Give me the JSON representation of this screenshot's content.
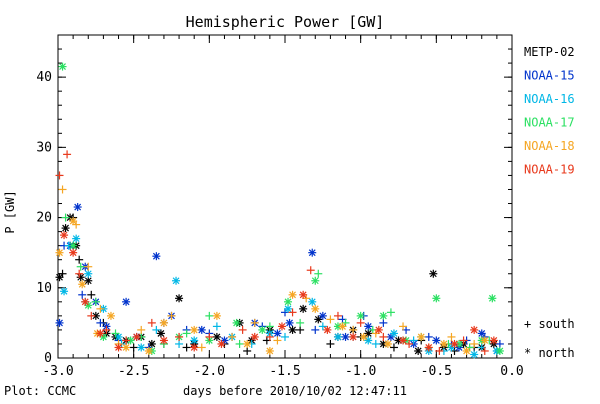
{
  "chart_data": {
    "type": "scatter",
    "title": "Hemispheric Power [GW]",
    "xlabel": "days before 2010/10/02 12:47:11",
    "ylabel": "P [GW]",
    "xlim": [
      -3.0,
      0.0
    ],
    "ylim": [
      0,
      46
    ],
    "x_ticks": [
      -3.0,
      -2.5,
      -2.0,
      -1.5,
      -1.0,
      -0.5,
      0.0
    ],
    "x_tick_labels": [
      "-3.0",
      "-2.5",
      "-2.0",
      "-1.5",
      "-1.0",
      "-0.5",
      "0.0"
    ],
    "y_ticks": [
      0,
      10,
      20,
      30,
      40
    ],
    "y_tick_labels": [
      "0",
      "10",
      "20",
      "30",
      "40"
    ],
    "grid": false,
    "legend_position": "right",
    "credit": "Plot: CCMC",
    "hemisphere_legend": [
      {
        "marker": "plus",
        "label": "+ south"
      },
      {
        "marker": "asterisk",
        "label": "* north"
      }
    ],
    "series": [
      {
        "name": "METP-02",
        "color": "#000000",
        "north": [
          [
            -2.99,
            11.5
          ],
          [
            -2.95,
            18.5
          ],
          [
            -2.92,
            20
          ],
          [
            -2.88,
            16
          ],
          [
            -2.85,
            11.5
          ],
          [
            -2.8,
            11
          ],
          [
            -2.75,
            6
          ],
          [
            -2.68,
            3.5
          ],
          [
            -2.62,
            3
          ],
          [
            -2.55,
            2.5
          ],
          [
            -2.45,
            3
          ],
          [
            -2.38,
            2
          ],
          [
            -2.32,
            3.5
          ],
          [
            -2.2,
            8.5
          ],
          [
            -2.1,
            2
          ],
          [
            -1.95,
            3
          ],
          [
            -1.8,
            5
          ],
          [
            -1.72,
            2.5
          ],
          [
            -1.6,
            4
          ],
          [
            -1.45,
            4
          ],
          [
            -1.38,
            7
          ],
          [
            -1.28,
            5.5
          ],
          [
            -1.15,
            3
          ],
          [
            -1.05,
            4
          ],
          [
            -0.95,
            3.5
          ],
          [
            -0.85,
            2
          ],
          [
            -0.75,
            2.5
          ],
          [
            -0.62,
            1
          ],
          [
            -0.52,
            12
          ],
          [
            -0.45,
            1.5
          ],
          [
            -0.32,
            2
          ],
          [
            -0.2,
            1.5
          ],
          [
            -0.12,
            2
          ]
        ],
        "south": [
          [
            -2.97,
            12
          ],
          [
            -2.9,
            20
          ],
          [
            -2.86,
            14
          ],
          [
            -2.78,
            9
          ],
          [
            -2.7,
            5
          ],
          [
            -2.5,
            1.5
          ],
          [
            -2.3,
            2
          ],
          [
            -2.15,
            1.5
          ],
          [
            -1.9,
            2
          ],
          [
            -1.75,
            1
          ],
          [
            -1.62,
            2.5
          ],
          [
            -1.4,
            4
          ],
          [
            -1.2,
            2
          ],
          [
            -1.0,
            3
          ],
          [
            -0.78,
            1.5
          ],
          [
            -0.6,
            2.5
          ],
          [
            -0.38,
            1
          ],
          [
            -0.25,
            1.5
          ]
        ]
      },
      {
        "name": "NOAA-15",
        "color": "#0033cc",
        "north": [
          [
            -2.99,
            5
          ],
          [
            -2.92,
            16
          ],
          [
            -2.87,
            21.5
          ],
          [
            -2.82,
            13
          ],
          [
            -2.75,
            8
          ],
          [
            -2.68,
            4.5
          ],
          [
            -2.55,
            8
          ],
          [
            -2.48,
            3
          ],
          [
            -2.35,
            14.5
          ],
          [
            -2.25,
            6
          ],
          [
            -2.05,
            4
          ],
          [
            -1.9,
            2.5
          ],
          [
            -1.7,
            5
          ],
          [
            -1.55,
            3.5
          ],
          [
            -1.47,
            5
          ],
          [
            -1.32,
            15
          ],
          [
            -1.25,
            6
          ],
          [
            -1.1,
            3
          ],
          [
            -0.95,
            4.5
          ],
          [
            -0.8,
            3
          ],
          [
            -0.65,
            2
          ],
          [
            -0.5,
            2.5
          ],
          [
            -0.35,
            1.5
          ],
          [
            -0.2,
            3.5
          ],
          [
            -0.1,
            1
          ]
        ],
        "south": [
          [
            -2.96,
            16
          ],
          [
            -2.84,
            9
          ],
          [
            -2.72,
            5
          ],
          [
            -2.6,
            2.5
          ],
          [
            -2.4,
            1.5
          ],
          [
            -2.3,
            5
          ],
          [
            -2.15,
            4
          ],
          [
            -2.0,
            3.5
          ],
          [
            -1.85,
            3
          ],
          [
            -1.65,
            4.5
          ],
          [
            -1.5,
            6.5
          ],
          [
            -1.3,
            4
          ],
          [
            -1.12,
            5.5
          ],
          [
            -0.98,
            6
          ],
          [
            -0.85,
            5
          ],
          [
            -0.7,
            4
          ],
          [
            -0.55,
            3
          ],
          [
            -0.4,
            2
          ],
          [
            -0.3,
            2.5
          ],
          [
            -0.18,
            3
          ],
          [
            -0.08,
            2
          ]
        ]
      },
      {
        "name": "NOAA-16",
        "color": "#00b7e6",
        "north": [
          [
            -2.96,
            9.5
          ],
          [
            -2.88,
            17
          ],
          [
            -2.8,
            12
          ],
          [
            -2.7,
            7
          ],
          [
            -2.6,
            3
          ],
          [
            -2.45,
            1.5
          ],
          [
            -2.22,
            11
          ],
          [
            -2.1,
            2.5
          ],
          [
            -1.85,
            3
          ],
          [
            -1.6,
            3.5
          ],
          [
            -1.48,
            7
          ],
          [
            -1.32,
            8
          ],
          [
            -1.15,
            3
          ],
          [
            -0.95,
            2.5
          ],
          [
            -0.78,
            3.5
          ],
          [
            -0.55,
            1
          ],
          [
            -0.4,
            1.5
          ],
          [
            -0.25,
            0.5
          ],
          [
            -0.1,
            1
          ]
        ],
        "south": [
          [
            -2.93,
            16
          ],
          [
            -2.82,
            8
          ],
          [
            -2.58,
            2
          ],
          [
            -2.35,
            4
          ],
          [
            -2.2,
            2
          ],
          [
            -1.95,
            4.5
          ],
          [
            -1.72,
            2
          ],
          [
            -1.5,
            3
          ],
          [
            -1.25,
            4.5
          ],
          [
            -1.05,
            3
          ],
          [
            -0.9,
            2
          ],
          [
            -0.65,
            2.5
          ],
          [
            -0.45,
            1
          ],
          [
            -0.2,
            1.5
          ]
        ]
      },
      {
        "name": "NOAA-17",
        "color": "#2be062",
        "north": [
          [
            -2.97,
            41.5
          ],
          [
            -2.9,
            16
          ],
          [
            -2.8,
            7.5
          ],
          [
            -2.7,
            3
          ],
          [
            -2.52,
            2.5
          ],
          [
            -2.38,
            1
          ],
          [
            -2.2,
            3
          ],
          [
            -2.0,
            2.5
          ],
          [
            -1.82,
            5
          ],
          [
            -1.65,
            4
          ],
          [
            -1.48,
            8
          ],
          [
            -1.3,
            11
          ],
          [
            -1.15,
            4.5
          ],
          [
            -1.0,
            6
          ],
          [
            -0.85,
            6
          ],
          [
            -0.7,
            2.5
          ],
          [
            -0.5,
            8.5
          ],
          [
            -0.35,
            2
          ],
          [
            -0.2,
            2.5
          ],
          [
            -0.13,
            8.5
          ],
          [
            -0.08,
            1
          ]
        ],
        "south": [
          [
            -2.95,
            20
          ],
          [
            -2.85,
            13
          ],
          [
            -2.75,
            8
          ],
          [
            -2.62,
            3.5
          ],
          [
            -2.45,
            3
          ],
          [
            -2.3,
            2
          ],
          [
            -2.15,
            3.5
          ],
          [
            -2.0,
            6
          ],
          [
            -1.8,
            2
          ],
          [
            -1.6,
            4.5
          ],
          [
            -1.4,
            5
          ],
          [
            -1.28,
            12
          ],
          [
            -1.1,
            5
          ],
          [
            -0.92,
            4
          ],
          [
            -0.8,
            6.5
          ],
          [
            -0.6,
            3
          ],
          [
            -0.42,
            2
          ],
          [
            -0.28,
            1.5
          ],
          [
            -0.15,
            2.5
          ]
        ]
      },
      {
        "name": "NOAA-18",
        "color": "#f5a623",
        "north": [
          [
            -2.99,
            15
          ],
          [
            -2.9,
            19.5
          ],
          [
            -2.84,
            10.5
          ],
          [
            -2.74,
            3.5
          ],
          [
            -2.65,
            6
          ],
          [
            -2.55,
            1.5
          ],
          [
            -2.4,
            1
          ],
          [
            -2.3,
            5
          ],
          [
            -2.1,
            4
          ],
          [
            -1.95,
            6
          ],
          [
            -1.75,
            2
          ],
          [
            -1.6,
            1
          ],
          [
            -1.45,
            9
          ],
          [
            -1.3,
            7
          ],
          [
            -1.12,
            4.5
          ],
          [
            -0.98,
            3
          ],
          [
            -0.82,
            2
          ],
          [
            -0.6,
            3
          ],
          [
            -0.45,
            2
          ],
          [
            -0.3,
            1
          ],
          [
            -0.18,
            2.5
          ]
        ],
        "south": [
          [
            -2.97,
            24
          ],
          [
            -2.88,
            19
          ],
          [
            -2.8,
            13
          ],
          [
            -2.72,
            7
          ],
          [
            -2.6,
            2
          ],
          [
            -2.45,
            4
          ],
          [
            -2.25,
            6
          ],
          [
            -2.05,
            1.5
          ],
          [
            -1.85,
            3
          ],
          [
            -1.7,
            5
          ],
          [
            -1.55,
            2.5
          ],
          [
            -1.36,
            8.5
          ],
          [
            -1.2,
            5.5
          ],
          [
            -1.05,
            4
          ],
          [
            -0.9,
            3.5
          ],
          [
            -0.72,
            4.5
          ],
          [
            -0.55,
            1.5
          ],
          [
            -0.4,
            3
          ],
          [
            -0.25,
            2
          ]
        ]
      },
      {
        "name": "NOAA-19",
        "color": "#e8381b",
        "north": [
          [
            -2.96,
            17.5
          ],
          [
            -2.9,
            15
          ],
          [
            -2.82,
            8
          ],
          [
            -2.72,
            3.5
          ],
          [
            -2.6,
            1.5
          ],
          [
            -2.48,
            3
          ],
          [
            -2.3,
            2.5
          ],
          [
            -2.1,
            1.5
          ],
          [
            -1.92,
            2
          ],
          [
            -1.7,
            3
          ],
          [
            -1.52,
            4.5
          ],
          [
            -1.38,
            9
          ],
          [
            -1.22,
            4
          ],
          [
            -1.05,
            3
          ],
          [
            -0.88,
            4
          ],
          [
            -0.72,
            2.5
          ],
          [
            -0.55,
            1.5
          ],
          [
            -0.38,
            2
          ],
          [
            -0.25,
            4
          ],
          [
            -0.12,
            2.5
          ]
        ],
        "south": [
          [
            -2.99,
            26
          ],
          [
            -2.94,
            29
          ],
          [
            -2.86,
            12
          ],
          [
            -2.78,
            6
          ],
          [
            -2.68,
            4
          ],
          [
            -2.55,
            2.5
          ],
          [
            -2.38,
            5
          ],
          [
            -2.2,
            3
          ],
          [
            -2.0,
            3
          ],
          [
            -1.78,
            4
          ],
          [
            -1.6,
            3
          ],
          [
            -1.45,
            6.5
          ],
          [
            -1.33,
            12.5
          ],
          [
            -1.15,
            6
          ],
          [
            -1.0,
            5
          ],
          [
            -0.85,
            3
          ],
          [
            -0.68,
            2
          ],
          [
            -0.48,
            1
          ],
          [
            -0.32,
            2.5
          ],
          [
            -0.18,
            1
          ]
        ]
      }
    ]
  }
}
